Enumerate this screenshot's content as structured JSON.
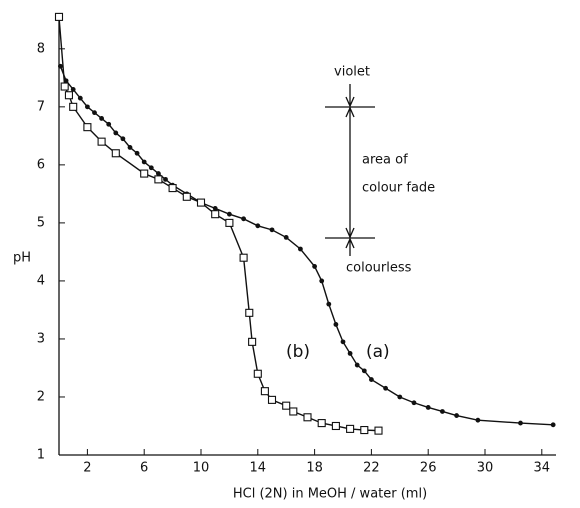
{
  "chart_data": {
    "type": "line",
    "x_label": "HCl (2N) in MeOH / water (ml)",
    "y_label": "pH",
    "xlim": [
      0,
      35
    ],
    "ylim": [
      1,
      8.6
    ],
    "xticks": [
      2,
      6,
      10,
      14,
      18,
      22,
      26,
      30,
      34
    ],
    "yticks": [
      1,
      2,
      3,
      4,
      5,
      6,
      7,
      8
    ],
    "annotations": {
      "violet": "violet",
      "fade": [
        "area of",
        "colour fade"
      ],
      "colourless": "colourless"
    },
    "series": [
      {
        "name": "(a)",
        "color": "#111111",
        "marker": "dot",
        "x": [
          0.1,
          0.5,
          1,
          1.5,
          2,
          2.5,
          3,
          3.5,
          4,
          4.5,
          5,
          5.5,
          6,
          6.5,
          7,
          7.5,
          8,
          9,
          10,
          11,
          12,
          13,
          14,
          15,
          16,
          17,
          18,
          18.5,
          19,
          19.5,
          20,
          20.5,
          21,
          21.5,
          22,
          23,
          24,
          25,
          26,
          27,
          28,
          29.5,
          32.5,
          34.8
        ],
        "values": [
          7.7,
          7.45,
          7.3,
          7.15,
          7.0,
          6.9,
          6.8,
          6.7,
          6.55,
          6.45,
          6.3,
          6.2,
          6.05,
          5.95,
          5.85,
          5.75,
          5.65,
          5.5,
          5.35,
          5.25,
          5.15,
          5.07,
          4.95,
          4.88,
          4.75,
          4.55,
          4.25,
          4.0,
          3.6,
          3.25,
          2.95,
          2.75,
          2.55,
          2.45,
          2.3,
          2.15,
          2.0,
          1.9,
          1.82,
          1.75,
          1.68,
          1.6,
          1.55,
          1.52
        ]
      },
      {
        "name": "(b)",
        "color": "#111111",
        "marker": "square",
        "x": [
          0,
          0.4,
          0.7,
          1,
          2,
          3,
          4,
          6,
          7,
          8,
          9,
          10,
          11,
          12,
          13,
          13.4,
          13.6,
          14,
          14.5,
          15,
          16,
          16.5,
          17.5,
          18.5,
          19.5,
          20.5,
          21.5,
          22.5
        ],
        "values": [
          8.55,
          7.35,
          7.2,
          7.0,
          6.65,
          6.4,
          6.2,
          5.85,
          5.75,
          5.6,
          5.45,
          5.35,
          5.15,
          5.0,
          4.4,
          3.45,
          2.95,
          2.4,
          2.1,
          1.95,
          1.85,
          1.75,
          1.65,
          1.55,
          1.5,
          1.45,
          1.43,
          1.42
        ]
      }
    ]
  }
}
